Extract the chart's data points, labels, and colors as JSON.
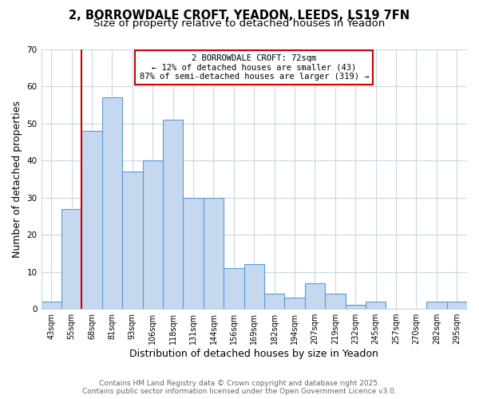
{
  "title_line1": "2, BORROWDALE CROFT, YEADON, LEEDS, LS19 7FN",
  "title_line2": "Size of property relative to detached houses in Yeadon",
  "categories": [
    "43sqm",
    "55sqm",
    "68sqm",
    "81sqm",
    "93sqm",
    "106sqm",
    "118sqm",
    "131sqm",
    "144sqm",
    "156sqm",
    "169sqm",
    "182sqm",
    "194sqm",
    "207sqm",
    "219sqm",
    "232sqm",
    "245sqm",
    "257sqm",
    "270sqm",
    "282sqm",
    "295sqm"
  ],
  "values": [
    2,
    27,
    48,
    57,
    37,
    40,
    51,
    30,
    30,
    11,
    12,
    4,
    3,
    7,
    4,
    1,
    2,
    0,
    0,
    2,
    2
  ],
  "bar_color": "#c5d8f0",
  "bar_edge_color": "#5b9bd5",
  "vline_x_index": 2,
  "vline_color": "#cc0000",
  "annotation_text": "2 BORROWDALE CROFT: 72sqm\n← 12% of detached houses are smaller (43)\n87% of semi-detached houses are larger (319) →",
  "annotation_box_color": "white",
  "annotation_box_edge": "#cc0000",
  "xlabel": "Distribution of detached houses by size in Yeadon",
  "ylabel": "Number of detached properties",
  "ylim": [
    0,
    70
  ],
  "yticks": [
    0,
    10,
    20,
    30,
    40,
    50,
    60,
    70
  ],
  "footer_line1": "Contains HM Land Registry data © Crown copyright and database right 2025.",
  "footer_line2": "Contains public sector information licensed under the Open Government Licence v3.0.",
  "bg_color": "#ffffff",
  "grid_color": "#c8d8e8",
  "title_fontsize": 10.5,
  "subtitle_fontsize": 9.5,
  "tick_fontsize": 7,
  "label_fontsize": 9,
  "footer_fontsize": 6.5,
  "annot_fontsize": 7.5
}
